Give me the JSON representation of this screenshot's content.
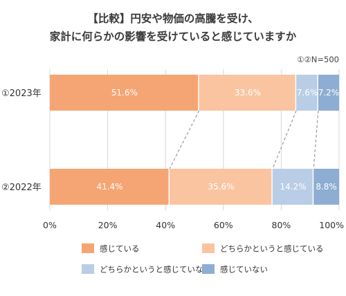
{
  "title_lines": [
    "【比較】円安や物価の高騰を受け、",
    "家計に何らかの影響を受けていると感じていますか"
  ],
  "sample_note": "①②N=500",
  "colors": {
    "strong_yes": "#f5a574",
    "some_yes": "#fac4a1",
    "some_no": "#b9cde6",
    "no": "#8eadd2",
    "grid": "#d6d6d6",
    "connector": "#9a9a9a"
  },
  "chart_data": {
    "type": "bar",
    "orientation": "horizontal",
    "stacked": true,
    "categories": [
      "①2023年",
      "②2022年"
    ],
    "series": [
      {
        "name": "感じている",
        "values": [
          51.6,
          41.4
        ],
        "labels": [
          "51.6%",
          "41.4%"
        ],
        "color_key": "strong_yes"
      },
      {
        "name": "どちらかというと感じている",
        "values": [
          33.6,
          35.6
        ],
        "labels": [
          "33.6%",
          "35.6%"
        ],
        "color_key": "some_yes"
      },
      {
        "name": "どちらかというと感じていない",
        "values": [
          7.6,
          14.2
        ],
        "labels": [
          "7.6%",
          "14.2%"
        ],
        "color_key": "some_no"
      },
      {
        "name": "感じていない",
        "values": [
          7.2,
          8.8
        ],
        "labels": [
          "7.2%",
          "8.8%"
        ],
        "color_key": "no"
      }
    ],
    "x_ticks": [
      "0%",
      "20%",
      "40%",
      "60%",
      "80%",
      "100%"
    ],
    "xlim": [
      0,
      100
    ],
    "grid": true,
    "legend_position": "bottom"
  }
}
